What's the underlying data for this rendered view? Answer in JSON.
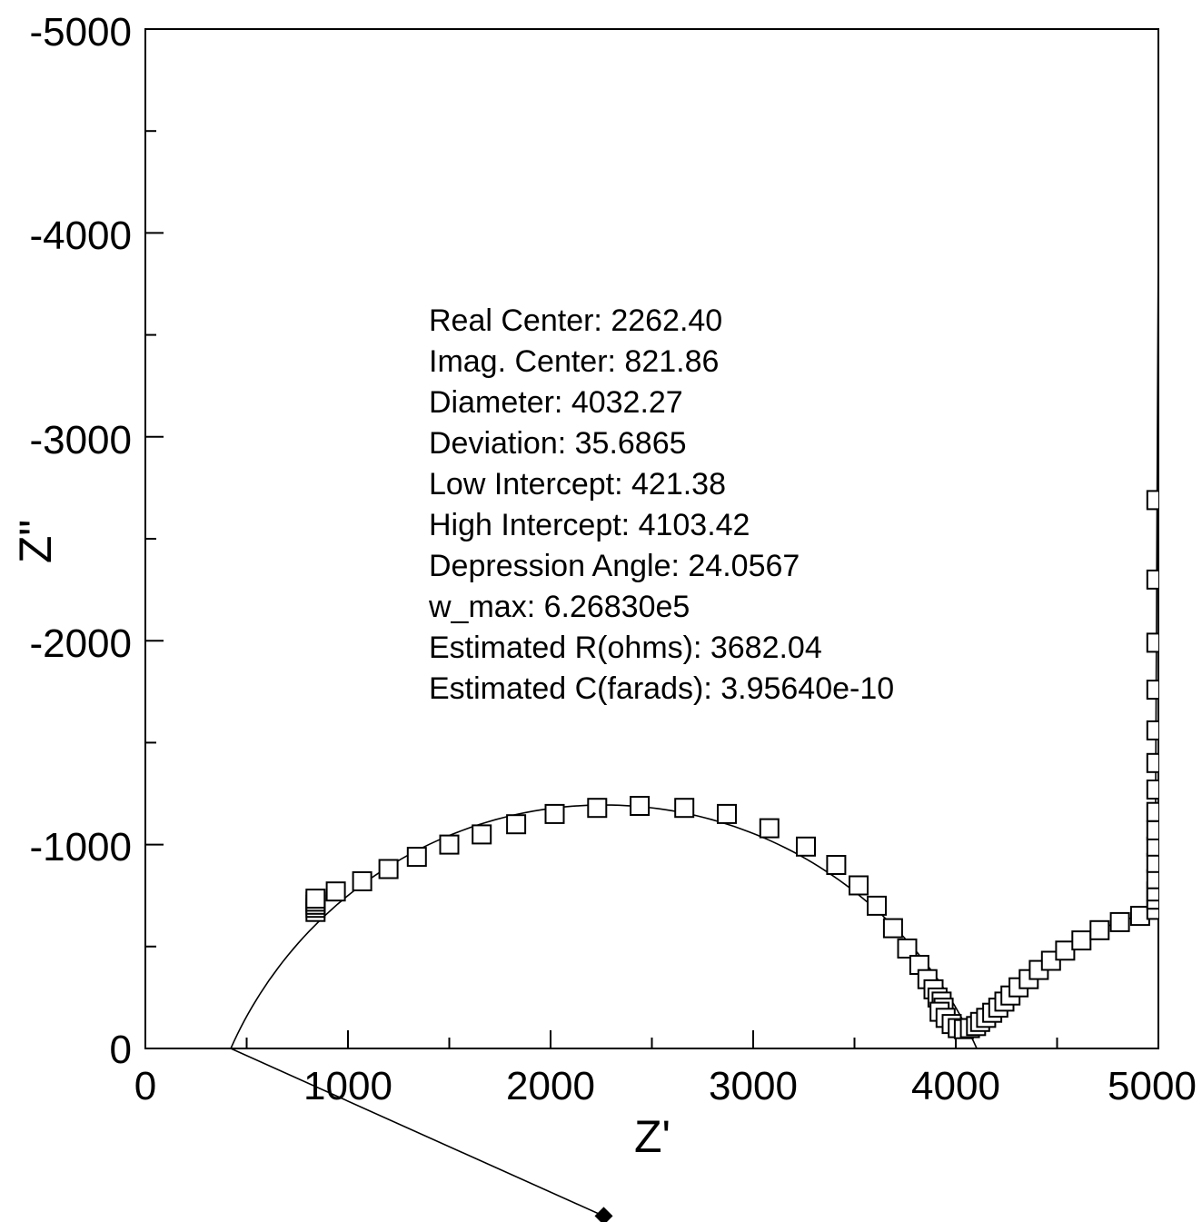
{
  "chart_data": {
    "type": "scatter",
    "title": "",
    "xlabel": "Z'",
    "ylabel": "Z\"",
    "xlim": [
      0,
      5000
    ],
    "ylim": [
      0,
      -5000
    ],
    "x_ticks": [
      "0",
      "1000",
      "2000",
      "3000",
      "4000",
      "5000"
    ],
    "y_ticks": [
      "0",
      "-1000",
      "-2000",
      "-3000",
      "-4000",
      "-5000"
    ],
    "grid": false,
    "annotations": [
      "Real Center: 2262.40",
      "Imag. Center: 821.86",
      "Diameter: 4032.27",
      "Deviation: 35.6865",
      "Low Intercept: 421.38",
      "High Intercept: 4103.42",
      "Depression Angle: 24.0567",
      "w_max: 6.26830e5",
      "Estimated R(ohms): 3682.04",
      "Estimated C(farads): 3.95640e-10"
    ],
    "fit_circle": {
      "center_x": 2262.4,
      "center_y": 821.86,
      "diameter": 4032.27,
      "low_intercept": 421.38,
      "high_intercept": 4103.42
    },
    "center_marker": {
      "x": 2262.4,
      "y": 821.86
    },
    "measured_points": [
      {
        "x": 840,
        "y": -670
      },
      {
        "x": 840,
        "y": -690
      },
      {
        "x": 840,
        "y": -705
      },
      {
        "x": 840,
        "y": -720
      },
      {
        "x": 840,
        "y": -735
      },
      {
        "x": 940,
        "y": -770
      },
      {
        "x": 1070,
        "y": -820
      },
      {
        "x": 1200,
        "y": -880
      },
      {
        "x": 1340,
        "y": -940
      },
      {
        "x": 1500,
        "y": -1000
      },
      {
        "x": 1660,
        "y": -1050
      },
      {
        "x": 1830,
        "y": -1100
      },
      {
        "x": 2020,
        "y": -1150
      },
      {
        "x": 2230,
        "y": -1180
      },
      {
        "x": 2440,
        "y": -1190
      },
      {
        "x": 2660,
        "y": -1180
      },
      {
        "x": 2870,
        "y": -1150
      },
      {
        "x": 3080,
        "y": -1080
      },
      {
        "x": 3260,
        "y": -990
      },
      {
        "x": 3410,
        "y": -900
      },
      {
        "x": 3520,
        "y": -800
      },
      {
        "x": 3610,
        "y": -700
      },
      {
        "x": 3690,
        "y": -590
      },
      {
        "x": 3760,
        "y": -490
      },
      {
        "x": 3820,
        "y": -410
      },
      {
        "x": 3860,
        "y": -340
      },
      {
        "x": 3890,
        "y": -290
      },
      {
        "x": 3910,
        "y": -250
      },
      {
        "x": 3930,
        "y": -230
      },
      {
        "x": 3940,
        "y": -200
      },
      {
        "x": 3920,
        "y": -180
      },
      {
        "x": 3950,
        "y": -150
      },
      {
        "x": 3980,
        "y": -120
      },
      {
        "x": 4010,
        "y": -100
      },
      {
        "x": 4040,
        "y": -95
      },
      {
        "x": 4070,
        "y": -100
      },
      {
        "x": 4100,
        "y": -110
      },
      {
        "x": 4120,
        "y": -130
      },
      {
        "x": 4150,
        "y": -150
      },
      {
        "x": 4180,
        "y": -175
      },
      {
        "x": 4210,
        "y": -200
      },
      {
        "x": 4240,
        "y": -230
      },
      {
        "x": 4270,
        "y": -260
      },
      {
        "x": 4310,
        "y": -300
      },
      {
        "x": 4360,
        "y": -340
      },
      {
        "x": 4410,
        "y": -385
      },
      {
        "x": 4470,
        "y": -430
      },
      {
        "x": 4540,
        "y": -480
      },
      {
        "x": 4620,
        "y": -530
      },
      {
        "x": 4710,
        "y": -580
      },
      {
        "x": 4810,
        "y": -620
      },
      {
        "x": 4910,
        "y": -650
      },
      {
        "x": 4990,
        "y": -680
      },
      {
        "x": 4990,
        "y": -730
      },
      {
        "x": 4990,
        "y": -770
      },
      {
        "x": 4990,
        "y": -830
      },
      {
        "x": 4990,
        "y": -910
      },
      {
        "x": 4990,
        "y": -990
      },
      {
        "x": 4990,
        "y": -1070
      },
      {
        "x": 4990,
        "y": -1160
      },
      {
        "x": 4990,
        "y": -1270
      },
      {
        "x": 4990,
        "y": -1400
      },
      {
        "x": 4990,
        "y": -1560
      },
      {
        "x": 4990,
        "y": -1760
      },
      {
        "x": 4990,
        "y": -1990
      },
      {
        "x": 4990,
        "y": -2300
      },
      {
        "x": 4990,
        "y": -2690
      }
    ],
    "fit_line_points": [
      {
        "x": 4000,
        "y": -100
      },
      {
        "x": 4050,
        "y": -110
      },
      {
        "x": 4100,
        "y": -150
      },
      {
        "x": 4200,
        "y": -220
      },
      {
        "x": 4300,
        "y": -300
      },
      {
        "x": 4400,
        "y": -380
      },
      {
        "x": 4500,
        "y": -450
      },
      {
        "x": 4600,
        "y": -520
      },
      {
        "x": 4700,
        "y": -580
      },
      {
        "x": 4800,
        "y": -620
      },
      {
        "x": 4900,
        "y": -650
      },
      {
        "x": 4960,
        "y": -670
      },
      {
        "x": 4980,
        "y": -700
      },
      {
        "x": 4985,
        "y": -1000
      },
      {
        "x": 4990,
        "y": -2000
      },
      {
        "x": 4995,
        "y": -3000
      },
      {
        "x": 5000,
        "y": -4000
      },
      {
        "x": 5000,
        "y": -5000
      }
    ]
  }
}
